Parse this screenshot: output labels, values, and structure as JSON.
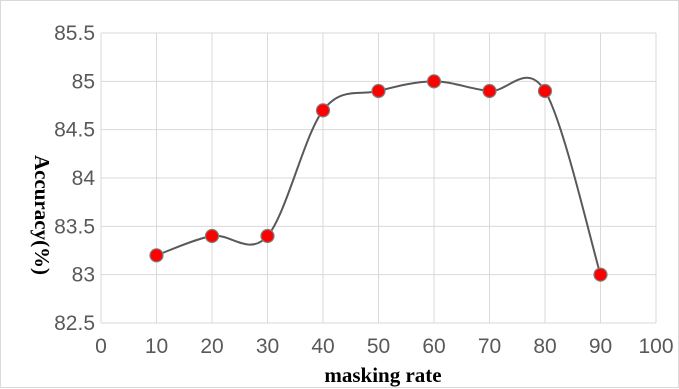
{
  "chart_data": {
    "type": "line",
    "title": "",
    "xlabel": "masking rate",
    "ylabel": "Accuracy(%)",
    "xlim": [
      0,
      100
    ],
    "ylim": [
      82.5,
      85.5
    ],
    "x_ticks": [
      "0",
      "10",
      "20",
      "30",
      "40",
      "50",
      "60",
      "70",
      "80",
      "90",
      "100"
    ],
    "y_ticks": [
      "82.5",
      "83",
      "83.5",
      "84",
      "84.5",
      "85",
      "85.5"
    ],
    "grid": true,
    "legend": "none",
    "smooth": true,
    "series": [
      {
        "x": [
          10,
          20,
          30,
          40,
          50,
          60,
          70,
          80,
          90
        ],
        "values": [
          83.2,
          83.4,
          83.4,
          84.7,
          84.9,
          85.0,
          84.9,
          84.9,
          83.0
        ],
        "line_color": "#595959",
        "marker_color": "#ff0000"
      }
    ]
  }
}
